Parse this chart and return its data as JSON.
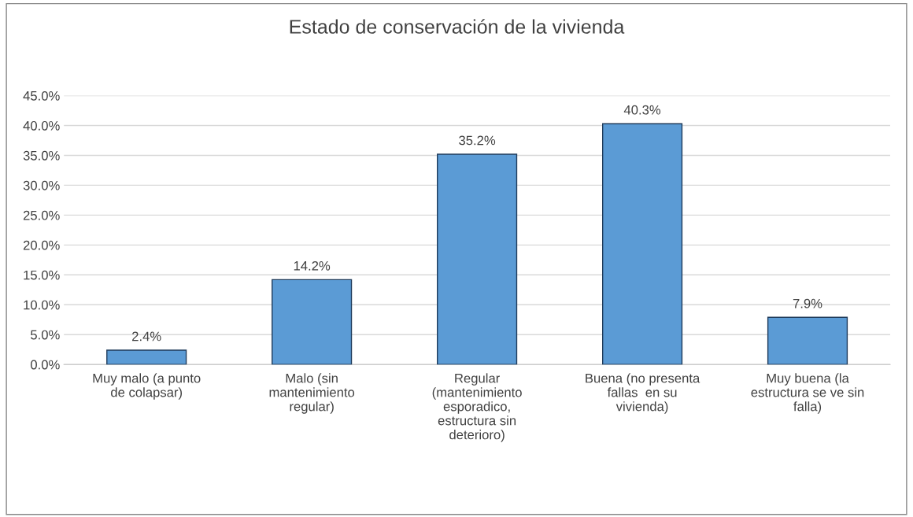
{
  "chart_data": {
    "type": "bar",
    "title": "Estado de conservación de la vivienda",
    "categories": [
      "Muy malo (a punto\nde colapsar)",
      "Malo (sin\nmantenimiento\nregular)",
      "Regular\n(mantenimiento\nesporadico,\nestructura sin\ndeterioro)",
      "Buena (no presenta\nfallas  en su\nvivienda)",
      "Muy buena (la\nestructura se ve sin\nfalla)"
    ],
    "values": [
      2.4,
      14.2,
      35.2,
      40.3,
      7.9
    ],
    "value_labels": [
      "2.4%",
      "14.2%",
      "35.2%",
      "40.3%",
      "7.9%"
    ],
    "color": "#5b9bd5",
    "ylim": [
      0,
      45
    ],
    "yticks": [
      {
        "value": 0,
        "label": "0.0%"
      },
      {
        "value": 5,
        "label": "5.0%"
      },
      {
        "value": 10,
        "label": "10.0%"
      },
      {
        "value": 15,
        "label": "15.0%"
      },
      {
        "value": 20,
        "label": "20.0%"
      },
      {
        "value": 25,
        "label": "25.0%"
      },
      {
        "value": 30,
        "label": "30.0%"
      },
      {
        "value": 35,
        "label": "35.0%"
      },
      {
        "value": 40,
        "label": "40.0%"
      },
      {
        "value": 45,
        "label": "45.0%"
      }
    ],
    "grid": "y",
    "legend": false
  }
}
